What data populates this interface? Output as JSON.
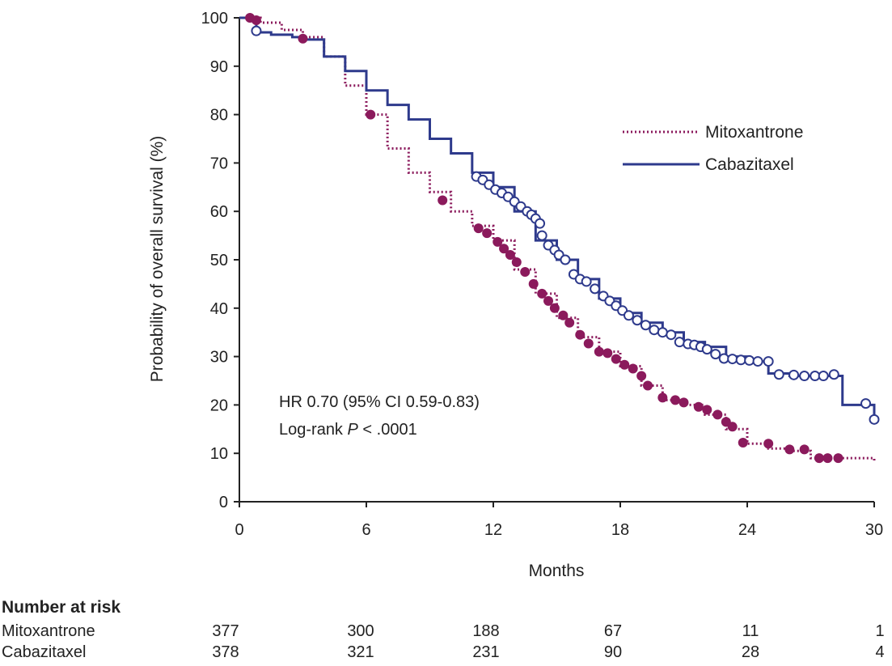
{
  "chart_data": {
    "type": "line",
    "subtype": "kaplan-meier",
    "ylabel": "Probability of overall survival (%)",
    "xlabel": "Months",
    "xlim": [
      0,
      30
    ],
    "ylim": [
      0,
      100
    ],
    "xticks": [
      "0",
      "6",
      "12",
      "18",
      "24",
      "30"
    ],
    "yticks": [
      "0",
      "10",
      "20",
      "30",
      "40",
      "50",
      "60",
      "70",
      "80",
      "90",
      "100"
    ],
    "grid": false,
    "legend_position": "top-right",
    "annotations": [
      "HR 0.70 (95% CI 0.59-0.83)",
      "Log-rank",
      "P",
      " < .0001"
    ],
    "series": [
      {
        "name": "Mitoxantrone",
        "color": "#8b1a5c",
        "line_style": "dotted",
        "marker": "filled-circle",
        "steps": [
          [
            0,
            100
          ],
          [
            1,
            99
          ],
          [
            2,
            97.5
          ],
          [
            3,
            96
          ],
          [
            4,
            92
          ],
          [
            5,
            86
          ],
          [
            6,
            80
          ],
          [
            7,
            73
          ],
          [
            8,
            68
          ],
          [
            9,
            64
          ],
          [
            10,
            60
          ],
          [
            11,
            57
          ],
          [
            12,
            54
          ],
          [
            13,
            48
          ],
          [
            14,
            43
          ],
          [
            15,
            38
          ],
          [
            16,
            34
          ],
          [
            17,
            31
          ],
          [
            18,
            28
          ],
          [
            19,
            24
          ],
          [
            20,
            21
          ],
          [
            21,
            20
          ],
          [
            22,
            18
          ],
          [
            23,
            15
          ],
          [
            24,
            12
          ],
          [
            25,
            11
          ],
          [
            26,
            10.5
          ],
          [
            27,
            9
          ],
          [
            28,
            9
          ],
          [
            30,
            8.5
          ]
        ],
        "censored": [
          [
            0.5,
            100
          ],
          [
            0.8,
            99.5
          ],
          [
            3,
            95.7
          ],
          [
            6.2,
            80
          ],
          [
            9.6,
            62.3
          ],
          [
            11.3,
            56.5
          ],
          [
            11.7,
            55.5
          ],
          [
            12.2,
            53.7
          ],
          [
            12.5,
            52.3
          ],
          [
            12.8,
            51
          ],
          [
            13.1,
            49.5
          ],
          [
            13.5,
            47.5
          ],
          [
            13.9,
            45
          ],
          [
            14.3,
            43
          ],
          [
            14.6,
            41.5
          ],
          [
            14.9,
            40
          ],
          [
            15.3,
            38.5
          ],
          [
            15.6,
            37
          ],
          [
            16.1,
            34.5
          ],
          [
            16.5,
            32.7
          ],
          [
            17,
            31
          ],
          [
            17.4,
            30.7
          ],
          [
            17.8,
            29.5
          ],
          [
            18.2,
            28.3
          ],
          [
            18.6,
            27.5
          ],
          [
            19,
            26
          ],
          [
            19.3,
            24
          ],
          [
            20,
            21.5
          ],
          [
            20.6,
            21
          ],
          [
            21,
            20.5
          ],
          [
            21.7,
            19.6
          ],
          [
            22.1,
            19
          ],
          [
            22.6,
            18
          ],
          [
            23,
            16.5
          ],
          [
            23.3,
            15.5
          ],
          [
            23.8,
            12.2
          ],
          [
            25,
            12
          ],
          [
            26,
            10.8
          ],
          [
            26.7,
            10.8
          ],
          [
            27.4,
            9
          ],
          [
            27.8,
            9
          ],
          [
            28.3,
            9
          ]
        ]
      },
      {
        "name": "Cabazitaxel",
        "color": "#2e3a8c",
        "line_style": "solid",
        "marker": "open-circle",
        "steps": [
          [
            0,
            100
          ],
          [
            0.8,
            97
          ],
          [
            1.5,
            96.5
          ],
          [
            2.5,
            96
          ],
          [
            3,
            95.5
          ],
          [
            4,
            92
          ],
          [
            5,
            89
          ],
          [
            6,
            85
          ],
          [
            7,
            82
          ],
          [
            8,
            79
          ],
          [
            9,
            75
          ],
          [
            10,
            72
          ],
          [
            11,
            68
          ],
          [
            12,
            65
          ],
          [
            13,
            60
          ],
          [
            14,
            54
          ],
          [
            15,
            50
          ],
          [
            16,
            46
          ],
          [
            17,
            42
          ],
          [
            18,
            39
          ],
          [
            19,
            37
          ],
          [
            20,
            35
          ],
          [
            21,
            33
          ],
          [
            22,
            32
          ],
          [
            23,
            30
          ],
          [
            24,
            29
          ],
          [
            25,
            26.5
          ],
          [
            26,
            26
          ],
          [
            27,
            26
          ],
          [
            28,
            26
          ],
          [
            28.5,
            20
          ],
          [
            29.5,
            20
          ],
          [
            30,
            17
          ]
        ],
        "censored": [
          [
            0.8,
            97.3
          ],
          [
            11.2,
            67.2
          ],
          [
            11.5,
            66.5
          ],
          [
            11.8,
            65.5
          ],
          [
            12.1,
            64.5
          ],
          [
            12.4,
            63.8
          ],
          [
            12.7,
            63
          ],
          [
            13,
            62
          ],
          [
            13.3,
            61
          ],
          [
            13.6,
            60
          ],
          [
            13.8,
            59.3
          ],
          [
            14,
            58.5
          ],
          [
            14.2,
            57.5
          ],
          [
            14.3,
            55
          ],
          [
            14.6,
            53
          ],
          [
            14.9,
            52
          ],
          [
            15.1,
            51
          ],
          [
            15.4,
            50
          ],
          [
            15.8,
            47
          ],
          [
            16.1,
            46
          ],
          [
            16.4,
            45.5
          ],
          [
            16.8,
            44
          ],
          [
            17.2,
            42.5
          ],
          [
            17.5,
            41.5
          ],
          [
            17.8,
            40.5
          ],
          [
            18.1,
            39.5
          ],
          [
            18.4,
            38.5
          ],
          [
            18.8,
            37.5
          ],
          [
            19.2,
            36.5
          ],
          [
            19.6,
            35.5
          ],
          [
            20,
            35
          ],
          [
            20.4,
            34.5
          ],
          [
            20.8,
            33
          ],
          [
            21.2,
            32.6
          ],
          [
            21.5,
            32.4
          ],
          [
            21.8,
            32
          ],
          [
            22.1,
            31.5
          ],
          [
            22.5,
            30.5
          ],
          [
            22.9,
            29.6
          ],
          [
            23.3,
            29.5
          ],
          [
            23.7,
            29.3
          ],
          [
            24.1,
            29.2
          ],
          [
            24.5,
            29
          ],
          [
            25,
            29
          ],
          [
            25.5,
            26.3
          ],
          [
            26.2,
            26.2
          ],
          [
            26.7,
            26
          ],
          [
            27.2,
            26
          ],
          [
            27.6,
            26
          ],
          [
            28.1,
            26.3
          ],
          [
            29.6,
            20.3
          ],
          [
            30,
            17
          ]
        ]
      }
    ],
    "risk_table": {
      "title": "Number at risk",
      "rows": [
        {
          "label": "Mitoxantrone",
          "values": [
            "377",
            "300",
            "188",
            "67",
            "11",
            "1"
          ]
        },
        {
          "label": "Cabazitaxel",
          "values": [
            "378",
            "321",
            "231",
            "90",
            "28",
            "4"
          ]
        }
      ]
    }
  }
}
